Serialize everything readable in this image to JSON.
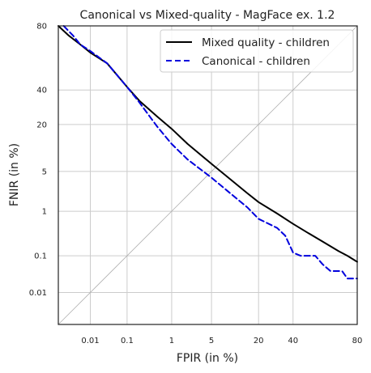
{
  "chart_data": {
    "type": "line",
    "title": "Canonical vs Mixed-quality - MagFace ex. 1.2",
    "xlabel": "FPIR (in %)",
    "ylabel": "FNIR (in %)",
    "scale": "probit (normal-deviate) axes on both x and y",
    "xlim": [
      0.001,
      80
    ],
    "ylim": [
      0.001,
      80
    ],
    "xticks": [
      0.01,
      0.1,
      1,
      5,
      20,
      40,
      80
    ],
    "xtick_labels": [
      "0.01",
      "0.1",
      "1",
      "5",
      "20",
      "40",
      "80"
    ],
    "yticks": [
      0.01,
      0.1,
      1,
      5,
      20,
      40,
      80
    ],
    "ytick_labels": [
      "0.01",
      "0.1",
      "1",
      "5",
      "20",
      "40",
      "80"
    ],
    "grid": true,
    "legend_position": "top-right",
    "diagonal_reference": true,
    "series": [
      {
        "name": "Mixed quality - children",
        "color": "#000000",
        "style": "solid",
        "points": [
          [
            0.001,
            80
          ],
          [
            0.0022,
            75
          ],
          [
            0.005,
            70
          ],
          [
            0.01,
            65
          ],
          [
            0.03,
            58
          ],
          [
            0.1,
            42
          ],
          [
            0.2,
            33
          ],
          [
            0.5,
            24
          ],
          [
            1,
            18
          ],
          [
            2,
            12
          ],
          [
            5,
            6.5
          ],
          [
            10,
            3.5
          ],
          [
            15,
            2.2
          ],
          [
            20,
            1.5
          ],
          [
            30,
            0.9
          ],
          [
            40,
            0.55
          ],
          [
            50,
            0.35
          ],
          [
            60,
            0.22
          ],
          [
            70,
            0.13
          ],
          [
            75,
            0.1
          ],
          [
            80,
            0.07
          ]
        ]
      },
      {
        "name": "Canonical - children",
        "color": "#0000dd",
        "style": "dashed",
        "points": [
          [
            0.0015,
            80
          ],
          [
            0.003,
            75
          ],
          [
            0.005,
            70
          ],
          [
            0.01,
            66
          ],
          [
            0.03,
            58
          ],
          [
            0.1,
            42
          ],
          [
            0.2,
            32
          ],
          [
            0.5,
            19
          ],
          [
            1,
            12
          ],
          [
            2,
            7.5
          ],
          [
            5,
            4
          ],
          [
            10,
            2
          ],
          [
            15,
            1.2
          ],
          [
            20,
            0.7
          ],
          [
            30,
            0.45
          ],
          [
            35,
            0.3
          ],
          [
            40,
            0.12
          ],
          [
            45,
            0.1
          ],
          [
            55,
            0.1
          ],
          [
            60,
            0.06
          ],
          [
            65,
            0.04
          ],
          [
            72,
            0.04
          ],
          [
            75,
            0.025
          ],
          [
            80,
            0.025
          ]
        ]
      }
    ]
  }
}
